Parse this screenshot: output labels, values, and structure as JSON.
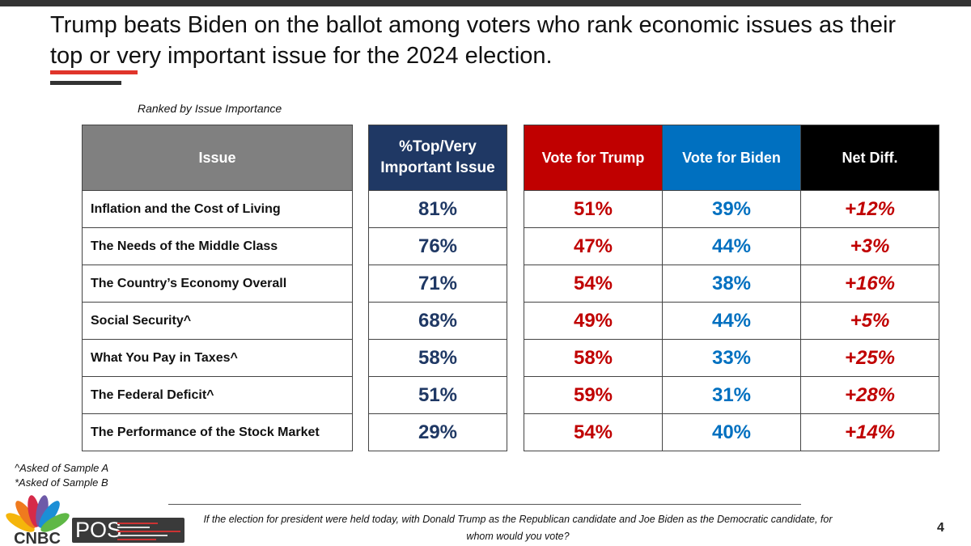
{
  "header": {
    "title_line1": "Trump beats Biden on the ballot among voters who rank economic issues as their",
    "title_line2": "top or very important issue for the 2024 election.",
    "subtitle": "Ranked by Issue Importance"
  },
  "chart_data": {
    "type": "table",
    "columns": [
      "Issue",
      "%Top/Very Important Issue",
      "Vote for Trump",
      "Vote for Biden",
      "Net Diff."
    ],
    "rows": [
      {
        "issue": "Inflation and the Cost of Living",
        "importance": "81%",
        "trump": "51%",
        "biden": "39%",
        "net": "+12%"
      },
      {
        "issue": "The Needs of the Middle Class",
        "importance": "76%",
        "trump": "47%",
        "biden": "44%",
        "net": "+3%"
      },
      {
        "issue": "The Country’s Economy Overall",
        "importance": "71%",
        "trump": "54%",
        "biden": "38%",
        "net": "+16%"
      },
      {
        "issue": "Social Security^",
        "importance": "68%",
        "trump": "49%",
        "biden": "44%",
        "net": "+5%"
      },
      {
        "issue": "What You Pay in Taxes^",
        "importance": "58%",
        "trump": "58%",
        "biden": "33%",
        "net": "+25%"
      },
      {
        "issue": "The Federal Deficit^",
        "importance": "51%",
        "trump": "59%",
        "biden": "31%",
        "net": "+28%"
      },
      {
        "issue": "The Performance of the Stock Market",
        "importance": "29%",
        "trump": "54%",
        "biden": "40%",
        "net": "+14%"
      }
    ],
    "colors": {
      "issue_header": "#808080",
      "importance": "#1f3864",
      "trump": "#c00000",
      "biden": "#0070c0",
      "net_header": "#000000"
    }
  },
  "notes": [
    "^Asked of Sample A",
    "*Asked of Sample B"
  ],
  "footer": {
    "question": "If the election for president were held today, with Donald Trump as the Republican candidate and Joe Biden as the Democratic candidate, for whom would you vote?",
    "page_number": "4",
    "logo_cnbc": "CNBC",
    "logo_pos": "POS"
  }
}
